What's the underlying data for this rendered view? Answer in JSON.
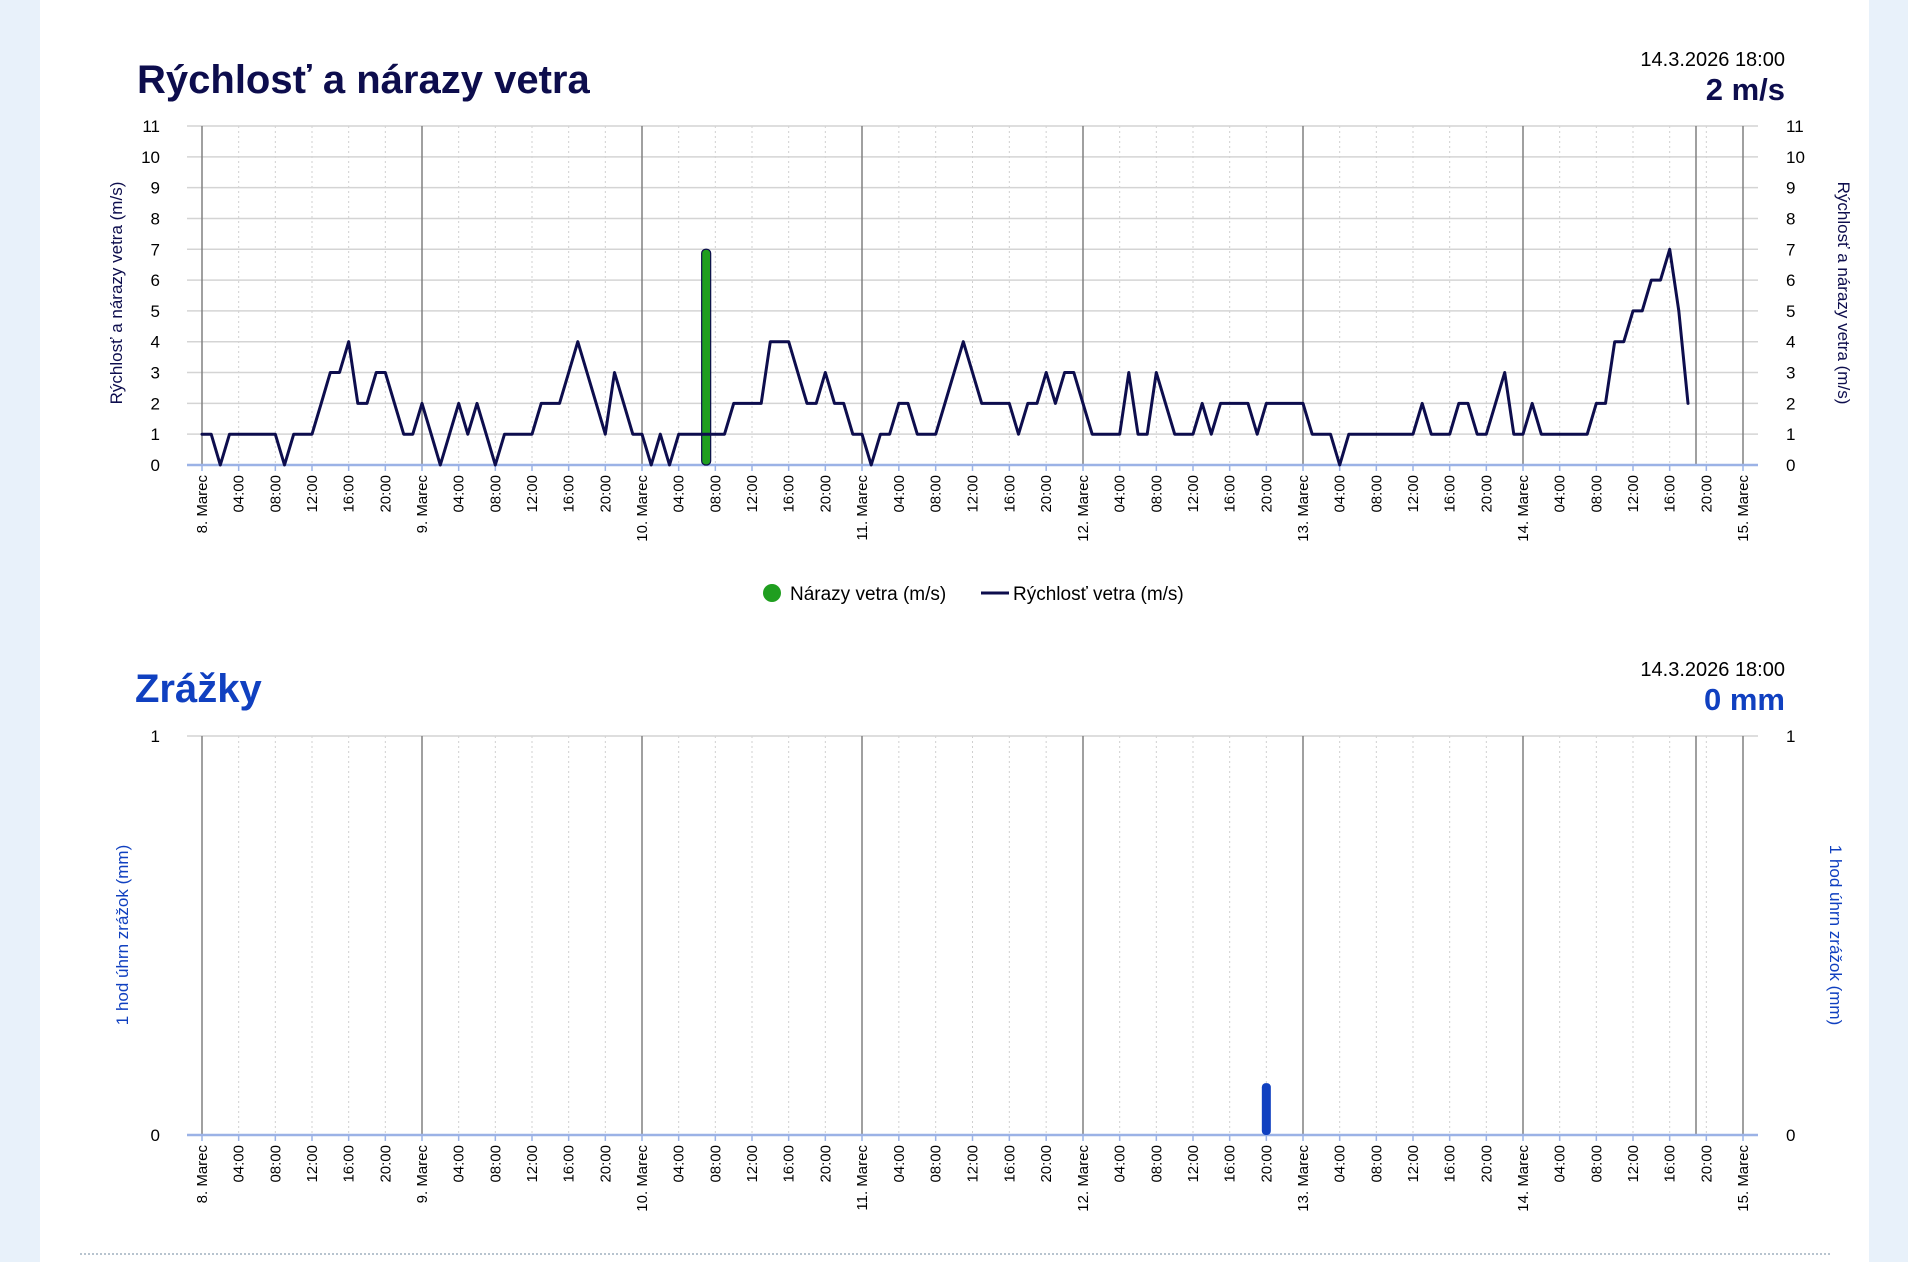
{
  "chart_data": [
    {
      "type": "line",
      "title": "Rýchlosť a nárazy vetra",
      "timestamp": "14.3.2026 18:00",
      "current_value": "2 m/s",
      "ylabel": "Rýchlosť a nárazy vetra (m/s)",
      "ylim": [
        0,
        11
      ],
      "yticks": [
        0,
        1,
        2,
        3,
        4,
        5,
        6,
        7,
        8,
        9,
        10,
        11
      ],
      "x_unit": "hours since 8. Marec 00:00",
      "xlim": [
        0,
        168
      ],
      "grid": true,
      "legend_position": "bottom",
      "series": [
        {
          "name": "Nárazy vetra (m/s)",
          "kind": "bar",
          "color": "#1f9e1f",
          "points": [
            [
              55,
              7
            ]
          ]
        },
        {
          "name": "Rýchlosť vetra (m/s)",
          "kind": "line",
          "color": "#0d0d4d",
          "points": [
            [
              0,
              1
            ],
            [
              1,
              1
            ],
            [
              2,
              0
            ],
            [
              3,
              1
            ],
            [
              4,
              1
            ],
            [
              5,
              1
            ],
            [
              6,
              1
            ],
            [
              7,
              1
            ],
            [
              8,
              1
            ],
            [
              9,
              0
            ],
            [
              10,
              1
            ],
            [
              11,
              1
            ],
            [
              12,
              1
            ],
            [
              13,
              2
            ],
            [
              14,
              3
            ],
            [
              15,
              3
            ],
            [
              16,
              4
            ],
            [
              17,
              2
            ],
            [
              18,
              2
            ],
            [
              19,
              3
            ],
            [
              20,
              3
            ],
            [
              21,
              2
            ],
            [
              22,
              1
            ],
            [
              23,
              1
            ],
            [
              24,
              2
            ],
            [
              25,
              1
            ],
            [
              26,
              0
            ],
            [
              27,
              1
            ],
            [
              28,
              2
            ],
            [
              29,
              1
            ],
            [
              30,
              2
            ],
            [
              31,
              1
            ],
            [
              32,
              0
            ],
            [
              33,
              1
            ],
            [
              34,
              1
            ],
            [
              35,
              1
            ],
            [
              36,
              1
            ],
            [
              37,
              2
            ],
            [
              38,
              2
            ],
            [
              39,
              2
            ],
            [
              40,
              3
            ],
            [
              41,
              4
            ],
            [
              42,
              3
            ],
            [
              43,
              2
            ],
            [
              44,
              1
            ],
            [
              45,
              3
            ],
            [
              46,
              2
            ],
            [
              47,
              1
            ],
            [
              48,
              1
            ],
            [
              49,
              0
            ],
            [
              50,
              1
            ],
            [
              51,
              0
            ],
            [
              52,
              1
            ],
            [
              53,
              1
            ],
            [
              54,
              1
            ],
            [
              55,
              1
            ],
            [
              56,
              1
            ],
            [
              57,
              1
            ],
            [
              58,
              2
            ],
            [
              59,
              2
            ],
            [
              60,
              2
            ],
            [
              61,
              2
            ],
            [
              62,
              4
            ],
            [
              63,
              4
            ],
            [
              64,
              4
            ],
            [
              65,
              3
            ],
            [
              66,
              2
            ],
            [
              67,
              2
            ],
            [
              68,
              3
            ],
            [
              69,
              2
            ],
            [
              70,
              2
            ],
            [
              71,
              1
            ],
            [
              72,
              1
            ],
            [
              73,
              0
            ],
            [
              74,
              1
            ],
            [
              75,
              1
            ],
            [
              76,
              2
            ],
            [
              77,
              2
            ],
            [
              78,
              1
            ],
            [
              79,
              1
            ],
            [
              80,
              1
            ],
            [
              81,
              2
            ],
            [
              82,
              3
            ],
            [
              83,
              4
            ],
            [
              84,
              3
            ],
            [
              85,
              2
            ],
            [
              86,
              2
            ],
            [
              87,
              2
            ],
            [
              88,
              2
            ],
            [
              89,
              1
            ],
            [
              90,
              2
            ],
            [
              91,
              2
            ],
            [
              92,
              3
            ],
            [
              93,
              2
            ],
            [
              94,
              3
            ],
            [
              95,
              3
            ],
            [
              96,
              2
            ],
            [
              97,
              1
            ],
            [
              98,
              1
            ],
            [
              99,
              1
            ],
            [
              100,
              1
            ],
            [
              101,
              3
            ],
            [
              102,
              1
            ],
            [
              103,
              1
            ],
            [
              104,
              3
            ],
            [
              105,
              2
            ],
            [
              106,
              1
            ],
            [
              107,
              1
            ],
            [
              108,
              1
            ],
            [
              109,
              2
            ],
            [
              110,
              1
            ],
            [
              111,
              2
            ],
            [
              112,
              2
            ],
            [
              113,
              2
            ],
            [
              114,
              2
            ],
            [
              115,
              1
            ],
            [
              116,
              2
            ],
            [
              117,
              2
            ],
            [
              118,
              2
            ],
            [
              119,
              2
            ],
            [
              120,
              2
            ],
            [
              121,
              1
            ],
            [
              122,
              1
            ],
            [
              123,
              1
            ],
            [
              124,
              0
            ],
            [
              125,
              1
            ],
            [
              126,
              1
            ],
            [
              127,
              1
            ],
            [
              128,
              1
            ],
            [
              129,
              1
            ],
            [
              130,
              1
            ],
            [
              131,
              1
            ],
            [
              132,
              1
            ],
            [
              133,
              2
            ],
            [
              134,
              1
            ],
            [
              135,
              1
            ],
            [
              136,
              1
            ],
            [
              137,
              2
            ],
            [
              138,
              2
            ],
            [
              139,
              1
            ],
            [
              140,
              1
            ],
            [
              141,
              2
            ],
            [
              142,
              3
            ],
            [
              143,
              1
            ],
            [
              144,
              1
            ],
            [
              145,
              2
            ],
            [
              146,
              1
            ],
            [
              147,
              1
            ],
            [
              148,
              1
            ],
            [
              149,
              1
            ],
            [
              150,
              1
            ],
            [
              151,
              1
            ],
            [
              152,
              2
            ],
            [
              153,
              2
            ],
            [
              154,
              4
            ],
            [
              155,
              4
            ],
            [
              156,
              5
            ],
            [
              157,
              5
            ],
            [
              158,
              6
            ],
            [
              159,
              6
            ],
            [
              160,
              7
            ],
            [
              161,
              5
            ],
            [
              162,
              2
            ]
          ]
        }
      ],
      "xtick_labels": [
        "8. Marec",
        "04:00",
        "08:00",
        "12:00",
        "16:00",
        "20:00",
        "9. Marec",
        "04:00",
        "08:00",
        "12:00",
        "16:00",
        "20:00",
        "10. Marec",
        "04:00",
        "08:00",
        "12:00",
        "16:00",
        "20:00",
        "11. Marec",
        "04:00",
        "08:00",
        "12:00",
        "16:00",
        "20:00",
        "12. Marec",
        "04:00",
        "08:00",
        "12:00",
        "16:00",
        "20:00",
        "13. Marec",
        "04:00",
        "08:00",
        "12:00",
        "16:00",
        "20:00",
        "14. Marec",
        "04:00",
        "08:00",
        "12:00",
        "16:00",
        "20:00",
        "15. Marec"
      ]
    },
    {
      "type": "bar",
      "title": "Zrážky",
      "timestamp": "14.3.2026 18:00",
      "current_value": "0 mm",
      "ylabel": "1 hod úhrn zrážok (mm)",
      "ylim": [
        0,
        1
      ],
      "yticks": [
        0,
        1
      ],
      "x_unit": "hours since 8. Marec 00:00",
      "xlim": [
        0,
        168
      ],
      "grid": true,
      "series": [
        {
          "name": "",
          "kind": "bar",
          "color": "#1040c0",
          "points": [
            [
              116,
              0.13
            ]
          ]
        }
      ],
      "xtick_labels": [
        "8. Marec",
        "04:00",
        "08:00",
        "12:00",
        "16:00",
        "20:00",
        "9. Marec",
        "04:00",
        "08:00",
        "12:00",
        "16:00",
        "20:00",
        "10. Marec",
        "04:00",
        "08:00",
        "12:00",
        "16:00",
        "20:00",
        "11. Marec",
        "04:00",
        "08:00",
        "12:00",
        "16:00",
        "20:00",
        "12. Marec",
        "04:00",
        "08:00",
        "12:00",
        "16:00",
        "20:00",
        "13. Marec",
        "04:00",
        "08:00",
        "12:00",
        "16:00",
        "20:00",
        "14. Marec",
        "04:00",
        "08:00",
        "12:00",
        "16:00",
        "20:00",
        "15. Marec"
      ]
    }
  ],
  "colors": {
    "title_wind": "#0d0d4d",
    "title_rain": "#1040c0",
    "wind_line": "#0d0d4d",
    "gust_bar": "#1f9e1f",
    "rain_bar": "#1040c0",
    "background": "#e8f1fa"
  }
}
